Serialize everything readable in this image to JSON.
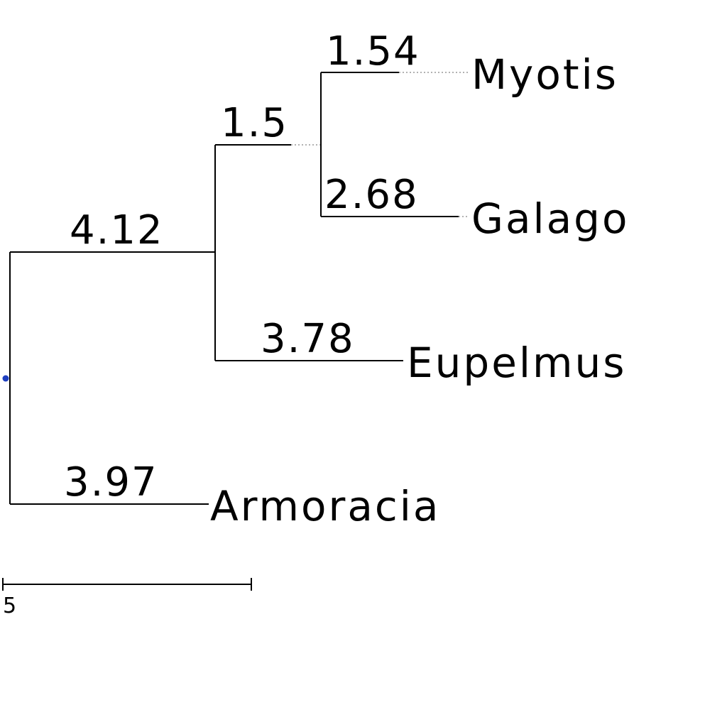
{
  "tree": {
    "leaves": [
      {
        "name": "Myotis",
        "branch_length": "1.54"
      },
      {
        "name": "Galago",
        "branch_length": "2.68"
      },
      {
        "name": "Eupelmus",
        "branch_length": "3.78"
      },
      {
        "name": "Armoracia",
        "branch_length": "3.97"
      }
    ],
    "internal": [
      {
        "id": "myotis-galago-clade",
        "branch_length": "1.5"
      },
      {
        "id": "three-taxon-clade",
        "branch_length": "4.12"
      }
    ],
    "root_marker_color": "#1f3fbf",
    "scale_bar": {
      "label": "5",
      "length_units": 5
    }
  }
}
